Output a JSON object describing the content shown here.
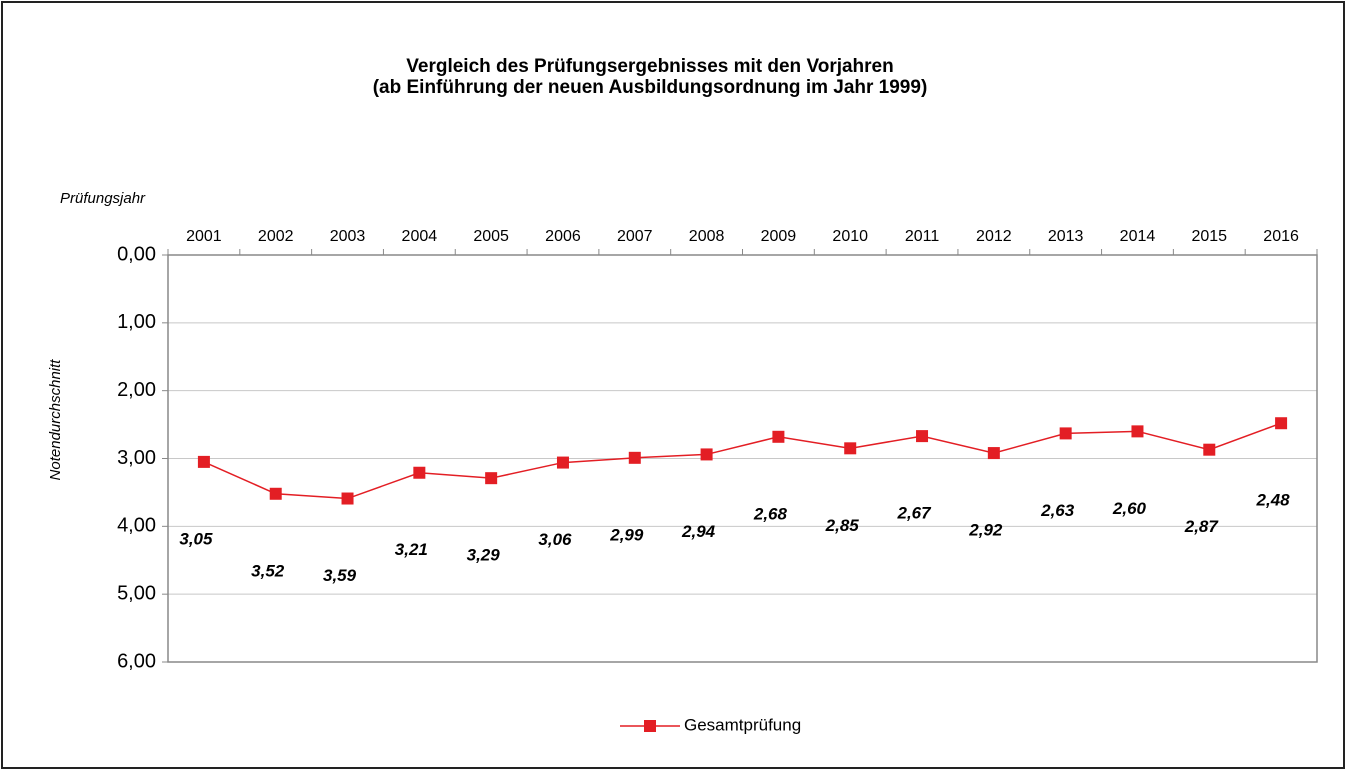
{
  "chart_data": {
    "type": "line",
    "title": "Vergleich des Prüfungsergebnisses  mit den Vorjahren",
    "subtitle": "(ab Einführung der neuen Ausbildungsordnung im Jahr 1999)",
    "x_label": "Prüfungsjahr",
    "y_label": "Notendurchschnitt",
    "categories": [
      "2001",
      "2002",
      "2003",
      "2004",
      "2005",
      "2006",
      "2007",
      "2008",
      "2009",
      "2010",
      "2011",
      "2012",
      "2013",
      "2014",
      "2015",
      "2016"
    ],
    "series": [
      {
        "name": "Gesamtprüfung",
        "color": "#e31e24",
        "values": [
          3.05,
          3.52,
          3.59,
          3.21,
          3.29,
          3.06,
          2.99,
          2.94,
          2.68,
          2.85,
          2.67,
          2.92,
          2.63,
          2.6,
          2.87,
          2.48
        ],
        "value_labels": [
          "3,05",
          "3,52",
          "3,59",
          "3,21",
          "3,29",
          "3,06",
          "2,99",
          "2,94",
          "2,68",
          "2,85",
          "2,67",
          "2,92",
          "2,63",
          "2,60",
          "2,87",
          "2,48"
        ]
      }
    ],
    "ylim": [
      0,
      6
    ],
    "y_inverted": true,
    "yticks": [
      {
        "value": 0,
        "label": "0,00"
      },
      {
        "value": 1,
        "label": "1,00"
      },
      {
        "value": 2,
        "label": "2,00"
      },
      {
        "value": 3,
        "label": "3,00"
      },
      {
        "value": 4,
        "label": "4,00"
      },
      {
        "value": 5,
        "label": "5,00"
      },
      {
        "value": 6,
        "label": "6,00"
      }
    ],
    "grid": true,
    "legend": "bottom"
  }
}
